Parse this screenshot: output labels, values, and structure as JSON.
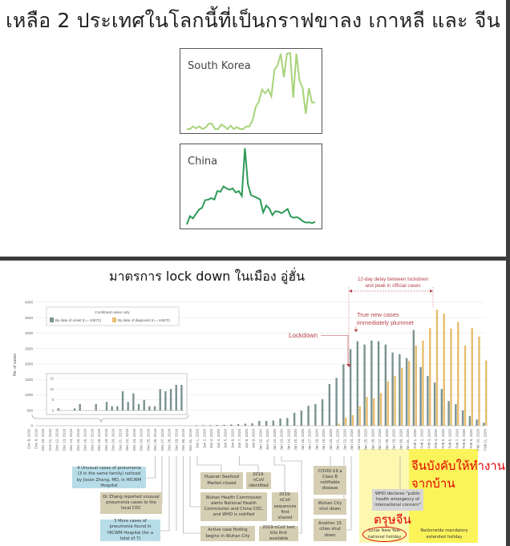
{
  "header": {
    "title": "เหลือ 2 ประเทศในโลกนี้ที่เป็นกราฟขาลง เกาหลี และ จีน"
  },
  "lockdown_section": {
    "title": "มาตรการ lock down ในเมือง อู่ฮั่น"
  },
  "thai_annotations": {
    "chinese_new_year": "ตรุษจีน",
    "work_from_home_line1": "จีนบังคับให้ทำงาน",
    "work_from_home_line2": "จากบ้าน"
  },
  "colors": {
    "onset": "#7a9290",
    "diagnosis": "#e8bd6e",
    "annotation_red": "#b5424a",
    "korea_line": "#a8d37a",
    "china_line": "#2f9a58",
    "highlight_light": "#fdf8b0",
    "highlight_strong": "#fbf35a"
  },
  "chart_data": [
    {
      "type": "line",
      "title": "South Korea",
      "values": [
        0,
        0,
        3.5,
        1,
        3.5,
        0,
        2,
        7,
        7,
        0,
        0,
        6,
        3.5,
        0,
        4.6,
        0,
        2.5,
        0,
        0,
        3.5,
        3.5,
        11.6,
        29,
        36,
        52,
        47,
        52,
        43,
        78,
        83.5,
        99,
        68,
        99,
        100,
        41,
        99,
        64,
        54,
        20,
        54,
        35,
        35
      ]
    },
    {
      "type": "line",
      "title": "China",
      "values": [
        0,
        11,
        8,
        14,
        19.6,
        22,
        32,
        32.6,
        34.7,
        32.6,
        44,
        43,
        50,
        47.4,
        45.6,
        47.4,
        42,
        43.9,
        37.5,
        100,
        52.6,
        38.6,
        36.8,
        35,
        33,
        15.8,
        25,
        21,
        12.3,
        17.5,
        16.8,
        14.7,
        17.5,
        20.4,
        10.5,
        8.8,
        9.8,
        7.7,
        4.2,
        2.5,
        2.8,
        1.75,
        3.5
      ]
    },
    {
      "type": "bar",
      "ylabel": "No. of cases",
      "ylim": [
        0,
        4000
      ],
      "yticks": [
        0,
        500,
        1000,
        1500,
        2000,
        2500,
        3000,
        3500,
        4000
      ],
      "grid": true,
      "legend": {
        "title": "Confirmed cases only",
        "position": "top-left"
      },
      "categories": [
        "Dec 8, 2019",
        "Dec 9, 2019",
        "Dec 10, 2019",
        "Dec 11, 2019",
        "Dec 12, 2019",
        "Dec 13, 2019",
        "Dec 14, 2019",
        "Dec 15, 2019",
        "Dec 16, 2019",
        "Dec 17, 2019",
        "Dec 18, 2019",
        "Dec 19, 2019",
        "Dec 20, 2019",
        "Dec 21, 2019",
        "Dec 22, 2019",
        "Dec 23, 2019",
        "Dec 24, 2019",
        "Dec 25, 2019",
        "Dec 26, 2019",
        "Dec 27, 2019",
        "Dec 28, 2019",
        "Dec 29, 2019",
        "Dec 30, 2019",
        "Dec 31, 2019",
        "Jan 1, 2020",
        "Jan 2, 2020",
        "Jan 3, 2020",
        "Jan 4, 2020",
        "Jan 5, 2020",
        "Jan 6, 2020",
        "Jan 7, 2020",
        "Jan 8, 2020",
        "Jan 9, 2020",
        "Jan 10, 2020",
        "Jan 11, 2020",
        "Jan 12, 2020",
        "Jan 13, 2020",
        "Jan 14, 2020",
        "Jan 15, 2020",
        "Jan 16, 2020",
        "Jan 17, 2020",
        "Jan 18, 2020",
        "Jan 19, 2020",
        "Jan 20, 2020",
        "Jan 21, 2020",
        "Jan 22, 2020",
        "Jan 23, 2020",
        "Jan 24, 2020",
        "Jan 25, 2020",
        "Jan 26, 2020",
        "Jan 27, 2020",
        "Jan 28, 2020",
        "Jan 29, 2020",
        "Jan 30, 2020",
        "Jan 31, 2020",
        "Feb 1, 2020",
        "Feb 2, 2020",
        "Feb 3, 2020",
        "Feb 4, 2020",
        "Feb 5, 2020",
        "Feb 6, 2020",
        "Feb 7, 2020",
        "Feb 8, 2020",
        "Feb 9, 2020",
        "Feb 10, 2020",
        "Feb 11, 2020"
      ],
      "series": [
        {
          "name": "By date of onset (n = 44672)",
          "values": [
            1,
            0,
            0,
            1,
            3,
            0,
            0,
            3,
            0,
            4,
            2,
            2,
            9,
            4,
            8,
            3,
            5,
            2,
            2,
            10,
            9,
            10,
            12,
            12,
            15,
            18,
            20,
            25,
            30,
            40,
            50,
            65,
            80,
            155,
            155,
            170,
            232,
            250,
            420,
            490,
            645,
            700,
            860,
            1350,
            1550,
            1990,
            2480,
            2740,
            2630,
            2760,
            2740,
            2630,
            2370,
            2320,
            2190,
            3100,
            1900,
            1610,
            1400,
            1190,
            800,
            700,
            500,
            310,
            200,
            100
          ]
        },
        {
          "name": "By date of diagnosis (n = 44672)",
          "values": [
            0,
            0,
            0,
            0,
            0,
            0,
            0,
            0,
            0,
            0,
            0,
            0,
            0,
            0,
            0,
            0,
            0,
            0,
            0,
            0,
            0,
            0,
            0,
            0,
            0,
            0,
            0,
            0,
            0,
            0,
            0,
            0,
            0,
            0,
            0,
            0,
            0,
            0,
            0,
            0,
            0,
            0,
            0,
            0,
            70,
            260,
            340,
            630,
            930,
            890,
            1060,
            1440,
            1610,
            1880,
            2100,
            2600,
            2760,
            3170,
            3760,
            3640,
            3150,
            3360,
            2600,
            3170,
            2890,
            2110
          ]
        }
      ],
      "inset": {
        "categories_range": [
          "Dec 8, 2019",
          "Dec 31, 2019"
        ],
        "ylim": [
          0,
          15
        ],
        "yticks": [
          0,
          5,
          10,
          15
        ]
      },
      "annotations": {
        "delay": "12-day delay between lockdown and peak in official cases",
        "delay_line1": "12-day delay between lockdown",
        "delay_line2": "and peak in official cases",
        "plummet_line1": "True new cases",
        "plummet_line2": "immediately plummet",
        "lockdown": "Lockdown"
      }
    }
  ],
  "timeline": {
    "events": [
      "4 Unusual cases of pneumonia (3 in the same family) noticed by Jixian Zhang, MD, in HICWM Hospital",
      "Dr Zhang reported unusual pneumonia cases to the local CDC",
      "3 More cases of pneumonia found in HICWM Hospital (for a total of 7)",
      "Huanan Seafood Market closed",
      "2019-nCoV identified",
      "Wuhan Health Commission alerts National Health Commission and China CDC, and WHO is notified",
      "2019-nCoV sequences first shared",
      "Active case finding begins in Wuhan City",
      "2019-nCoV test kits first available",
      "COVID-19 a Class B notifiable disease",
      "Wuhan City shut down",
      "Another 15 cities shut down",
      "WHO declares \"public health emergency of international concern\""
    ],
    "periods": [
      "Lunar New Year national holiday",
      "Nationwide mandatory extended holiday"
    ]
  }
}
